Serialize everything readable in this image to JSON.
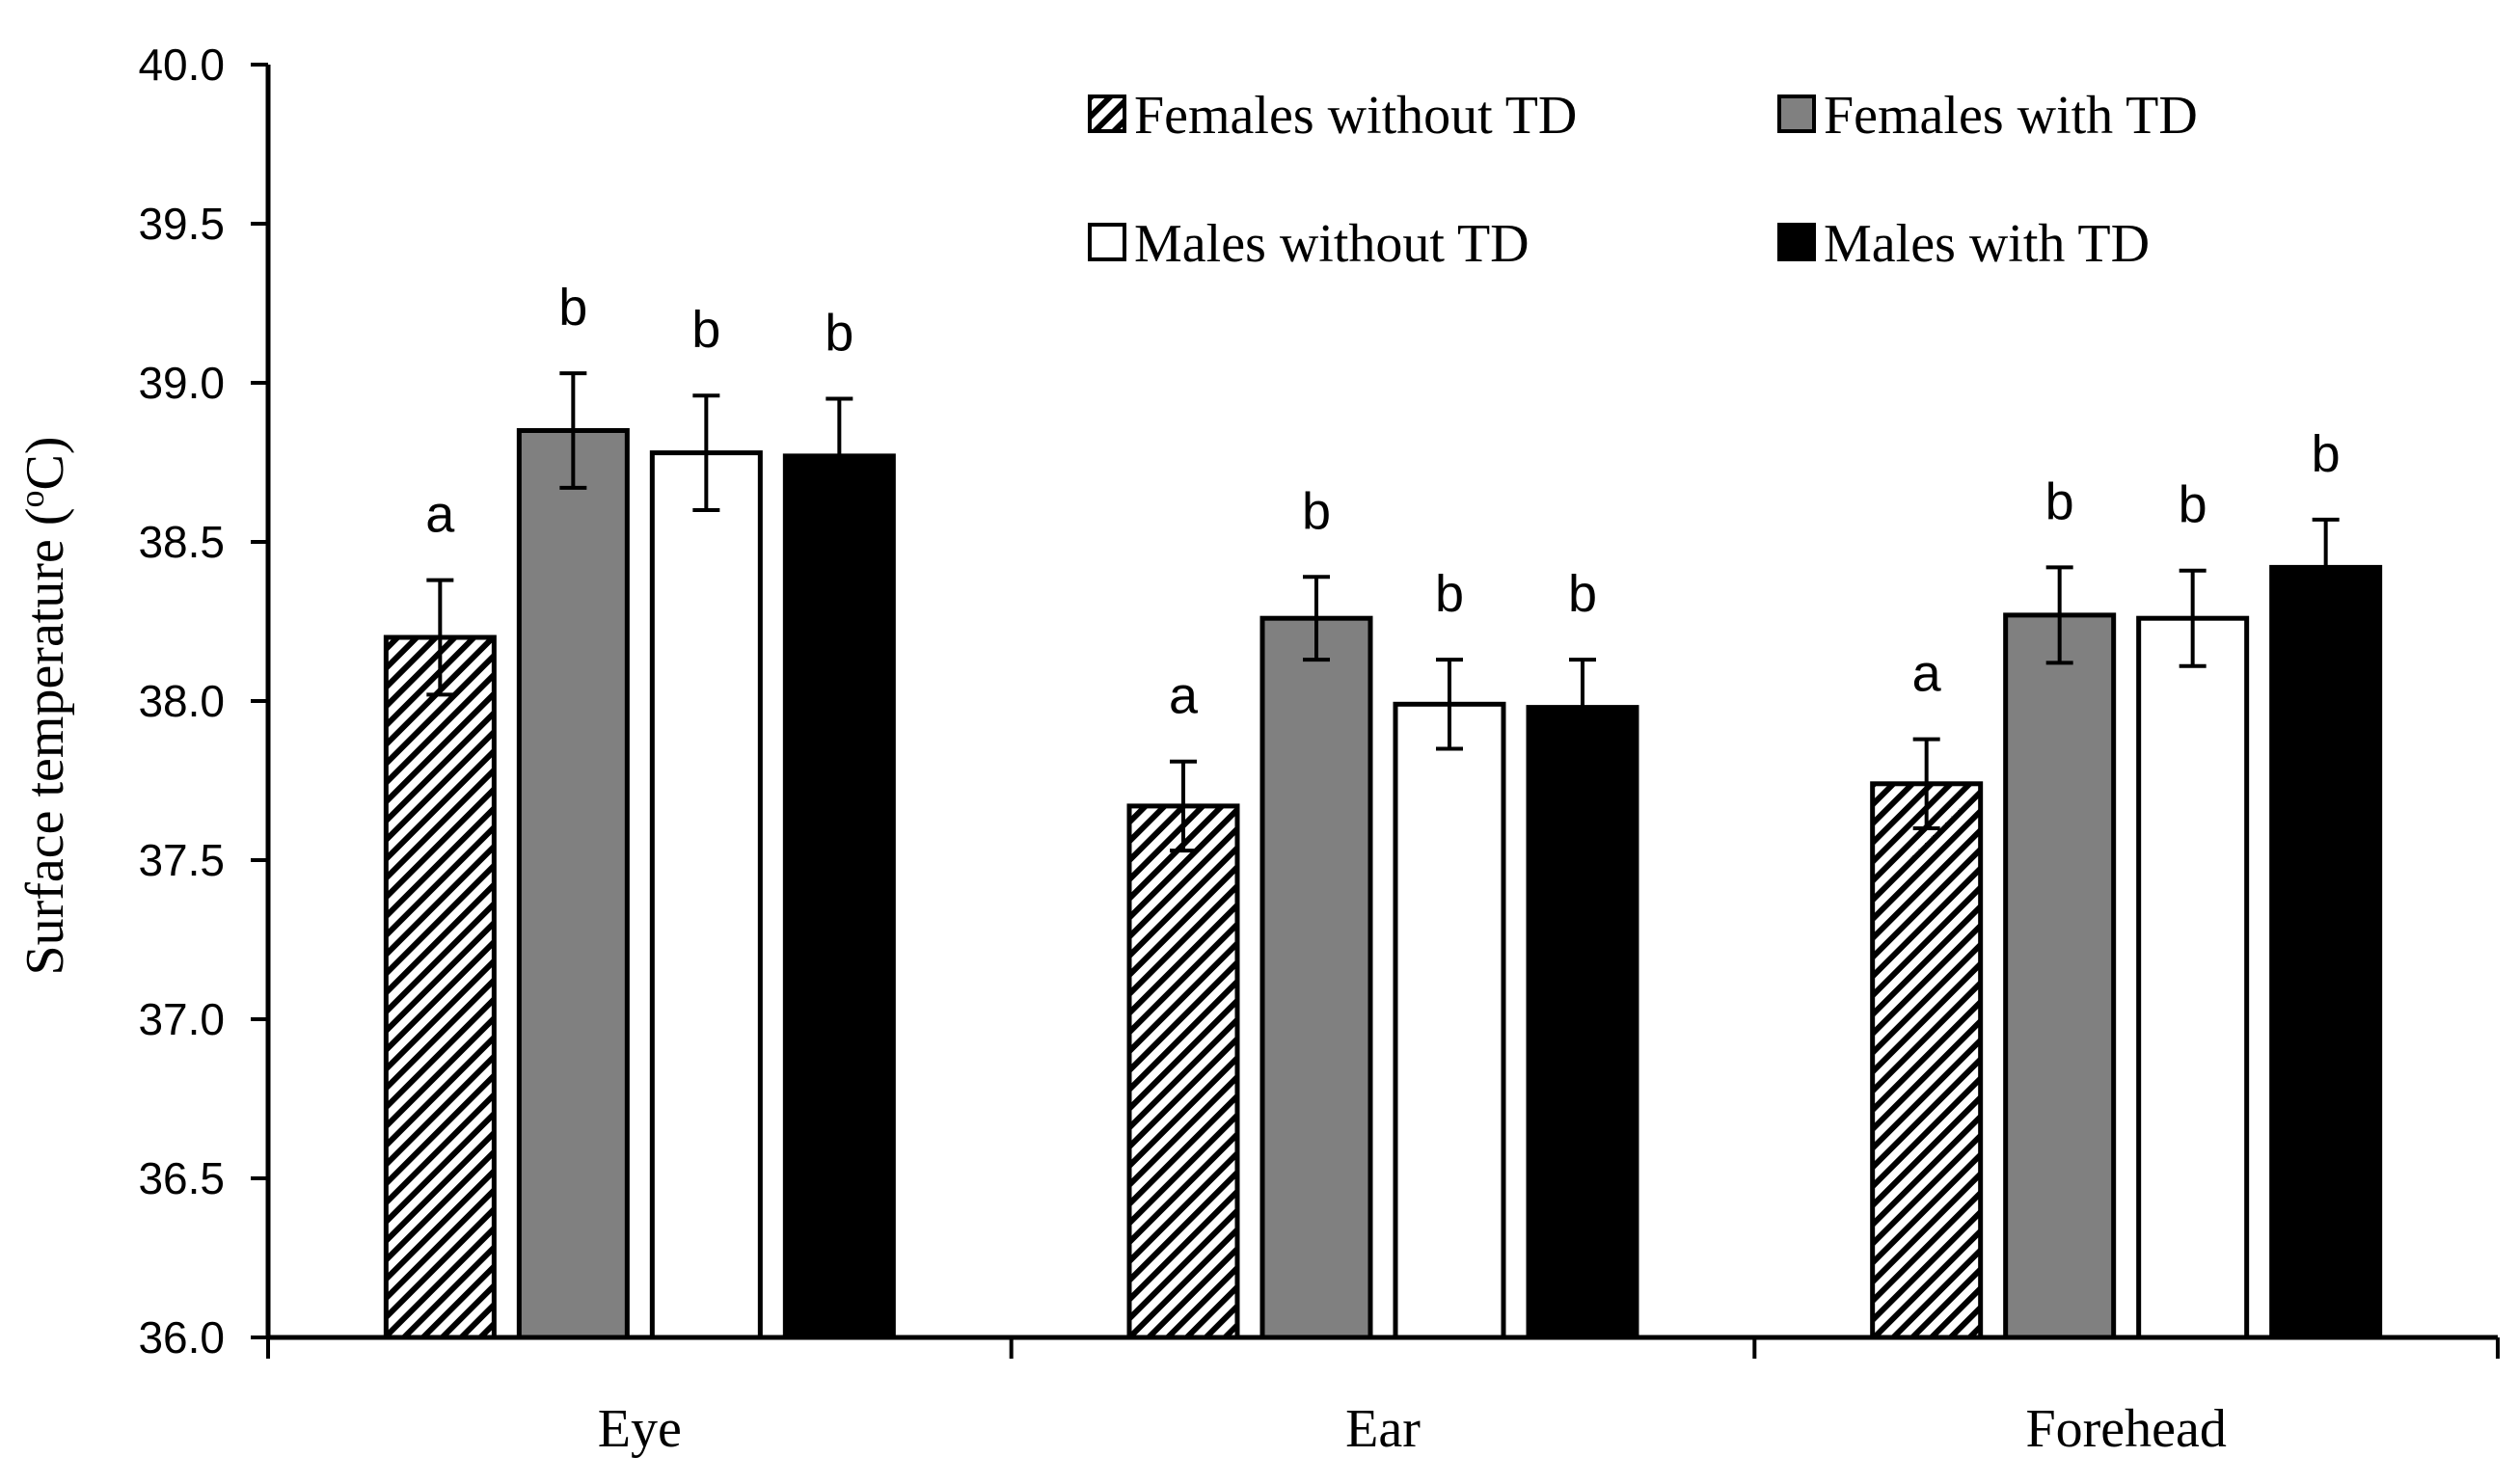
{
  "chart_data": {
    "type": "bar",
    "title": "",
    "xlabel": "",
    "ylabel": "Surface temperature (",
    "ylabel_sup": "o",
    "ylabel_tail": "C)",
    "ylim": [
      36.0,
      40.0
    ],
    "yticks": [
      "36.0",
      "36.5",
      "37.0",
      "37.5",
      "38.0",
      "38.5",
      "39.0",
      "39.5",
      "40.0"
    ],
    "ytick_values": [
      36.0,
      36.5,
      37.0,
      37.5,
      38.0,
      38.5,
      39.0,
      39.5,
      40.0
    ],
    "categories": [
      "Eye",
      "Ear",
      "Forehead"
    ],
    "legend_position": "top-right",
    "series": [
      {
        "name": "Females without TD",
        "fill": "hatch",
        "color": "#000000",
        "values": [
          38.2,
          37.67,
          37.74
        ],
        "errors": [
          0.18,
          0.14,
          0.14
        ],
        "letters": [
          "a",
          "a",
          "a"
        ]
      },
      {
        "name": "Females with TD",
        "fill": "solid",
        "color": "#808080",
        "values": [
          38.85,
          38.26,
          38.27
        ],
        "errors": [
          0.18,
          0.13,
          0.15
        ],
        "letters": [
          "b",
          "b",
          "b"
        ]
      },
      {
        "name": "Males without TD",
        "fill": "solid",
        "color": "#ffffff",
        "values": [
          38.78,
          37.99,
          38.26
        ],
        "errors": [
          0.18,
          0.14,
          0.15
        ],
        "letters": [
          "b",
          "b",
          "b"
        ]
      },
      {
        "name": "Males with TD",
        "fill": "solid",
        "color": "#000000",
        "values": [
          38.77,
          37.98,
          38.42
        ],
        "errors": [
          0.18,
          0.15,
          0.15
        ],
        "letters": [
          "b",
          "b",
          "b"
        ]
      }
    ]
  }
}
